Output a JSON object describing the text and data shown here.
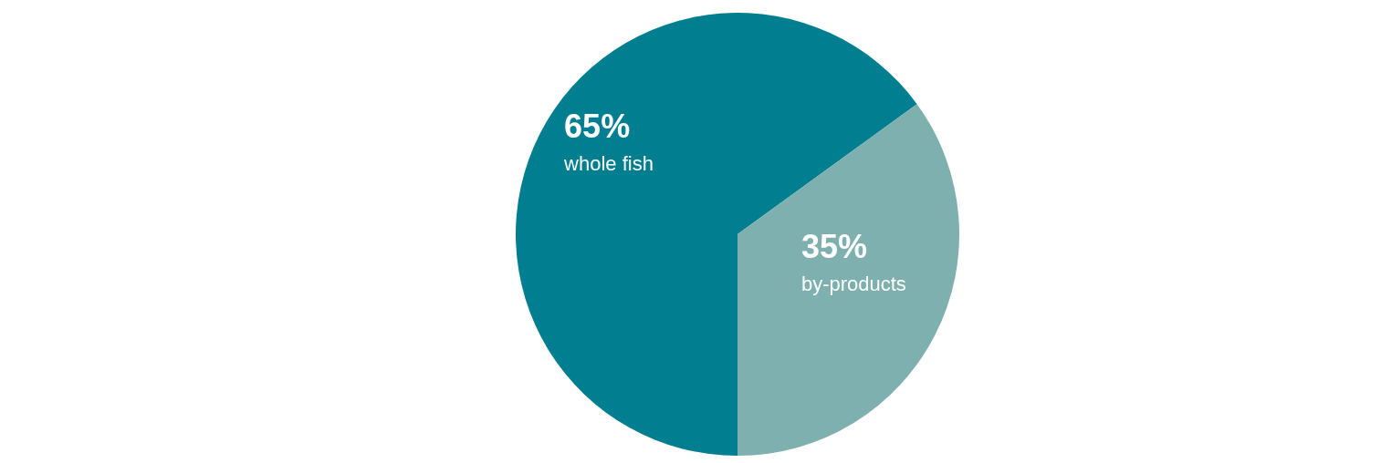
{
  "chart_data": {
    "type": "pie",
    "categories": [
      "whole fish",
      "by-products"
    ],
    "values": [
      65,
      35
    ],
    "colors": [
      "#027e91",
      "#7db0ae"
    ],
    "value_labels": [
      "65%",
      "35%"
    ],
    "legend": false
  }
}
